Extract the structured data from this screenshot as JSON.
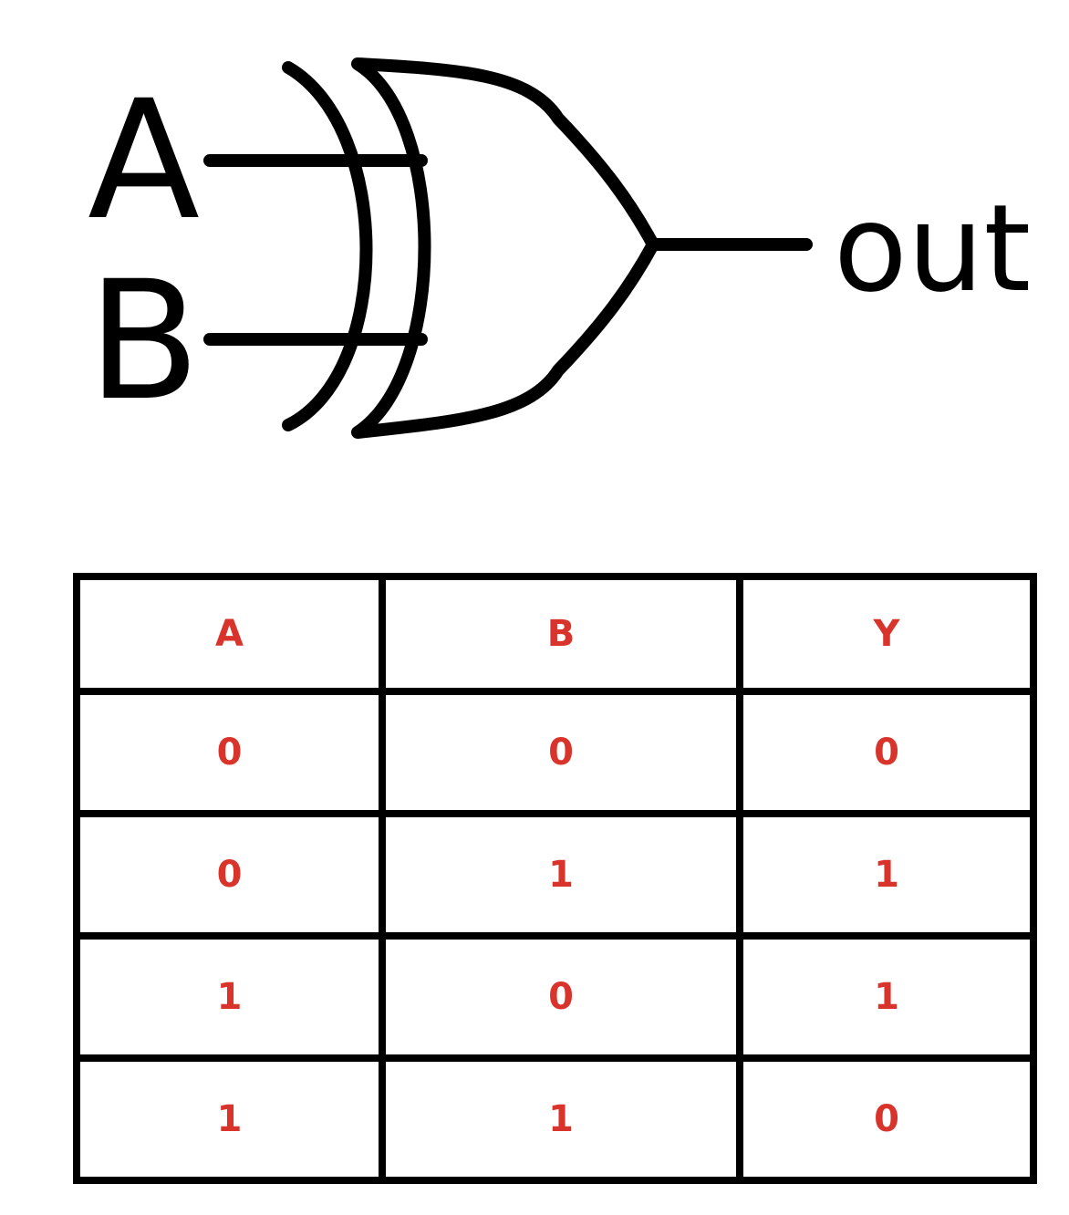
{
  "diagram": {
    "title": "XOR gate",
    "inputs": [
      "A",
      "B"
    ],
    "output": "out",
    "stroke_color": "#000000"
  },
  "truth_table": {
    "text_color": "#d9342b",
    "border_color": "#000000",
    "headers": [
      "A",
      "B",
      "Y"
    ],
    "rows": [
      [
        "0",
        "0",
        "0"
      ],
      [
        "0",
        "1",
        "1"
      ],
      [
        "1",
        "0",
        "1"
      ],
      [
        "1",
        "1",
        "0"
      ]
    ]
  }
}
